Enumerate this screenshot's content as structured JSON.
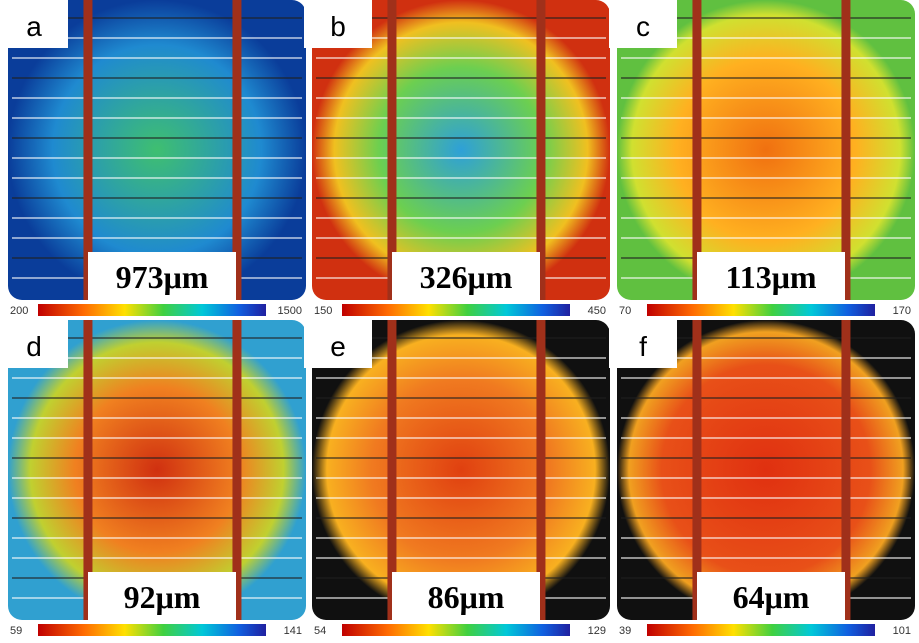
{
  "panels": [
    {
      "label": "a",
      "thickness": "973μm",
      "scale_min": 200,
      "scale_max": 1500
    },
    {
      "label": "b",
      "thickness": "326μm",
      "scale_min": 150,
      "scale_max": 450
    },
    {
      "label": "c",
      "thickness": "113μm",
      "scale_min": 70,
      "scale_max": 170
    },
    {
      "label": "d",
      "thickness": "92μm",
      "scale_min": 59,
      "scale_max": 141
    },
    {
      "label": "e",
      "thickness": "86μm",
      "scale_min": 54,
      "scale_max": 129
    },
    {
      "label": "f",
      "thickness": "64μm",
      "scale_min": 39,
      "scale_max": 101
    }
  ]
}
